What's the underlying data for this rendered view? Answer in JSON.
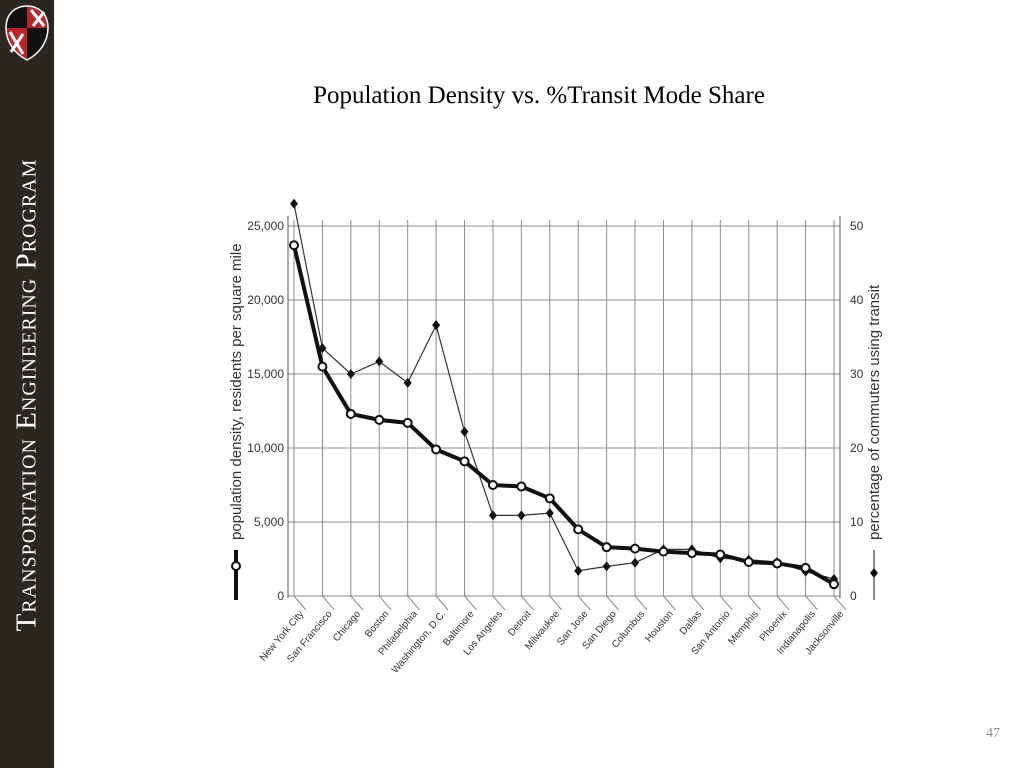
{
  "sidebar": {
    "title": "Transportation Engineering Program"
  },
  "slide": {
    "title": "Population Density vs. %Transit Mode Share",
    "page_number": "47"
  },
  "colors": {
    "sidebar_bg": "#2b2620",
    "logo_red": "#b8262c",
    "logo_gold": "#e8b21c",
    "logo_black": "#111111"
  },
  "icons": {
    "logo": "maryland-flag-seal-icon"
  },
  "chart_data": {
    "type": "line",
    "categories": [
      "New York City",
      "San Francisco",
      "Chicago",
      "Boston",
      "Philadelphia",
      "Washington, D.C.",
      "Baltimore",
      "Los Angeles",
      "Detroit",
      "Milwaukee",
      "San Jose",
      "San Diego",
      "Columbus",
      "Houston",
      "Dallas",
      "San Antonio",
      "Memphis",
      "Phoenix",
      "Indianapolis",
      "Jacksonville"
    ],
    "series": [
      {
        "name": "population density",
        "axis": "left",
        "marker": "open-circle",
        "line": "thick",
        "values": [
          23700,
          15500,
          12300,
          11900,
          11700,
          9900,
          9100,
          7500,
          7400,
          6600,
          4500,
          3300,
          3200,
          3000,
          2900,
          2800,
          2300,
          2200,
          1900,
          800
        ]
      },
      {
        "name": "percentage of commuters using transit",
        "axis": "right",
        "marker": "filled-diamond",
        "line": "thin",
        "values": [
          53,
          33.5,
          30,
          31.7,
          28.8,
          36.6,
          22.2,
          10.9,
          10.9,
          11.2,
          3.4,
          4,
          4.5,
          6.3,
          6.3,
          5.1,
          4.9,
          4.6,
          3.3,
          2.3
        ]
      }
    ],
    "ylabel": "population density, residents per square mile",
    "y2label": "percentage of commuters using transit",
    "ylim": [
      0,
      25000
    ],
    "y2lim": [
      0,
      50
    ],
    "yticks": [
      "0",
      "5,000",
      "10,000",
      "15,000",
      "20,000",
      "25,000"
    ],
    "y2ticks": [
      "0",
      "10",
      "20",
      "30",
      "40",
      "50"
    ],
    "grid": true
  }
}
